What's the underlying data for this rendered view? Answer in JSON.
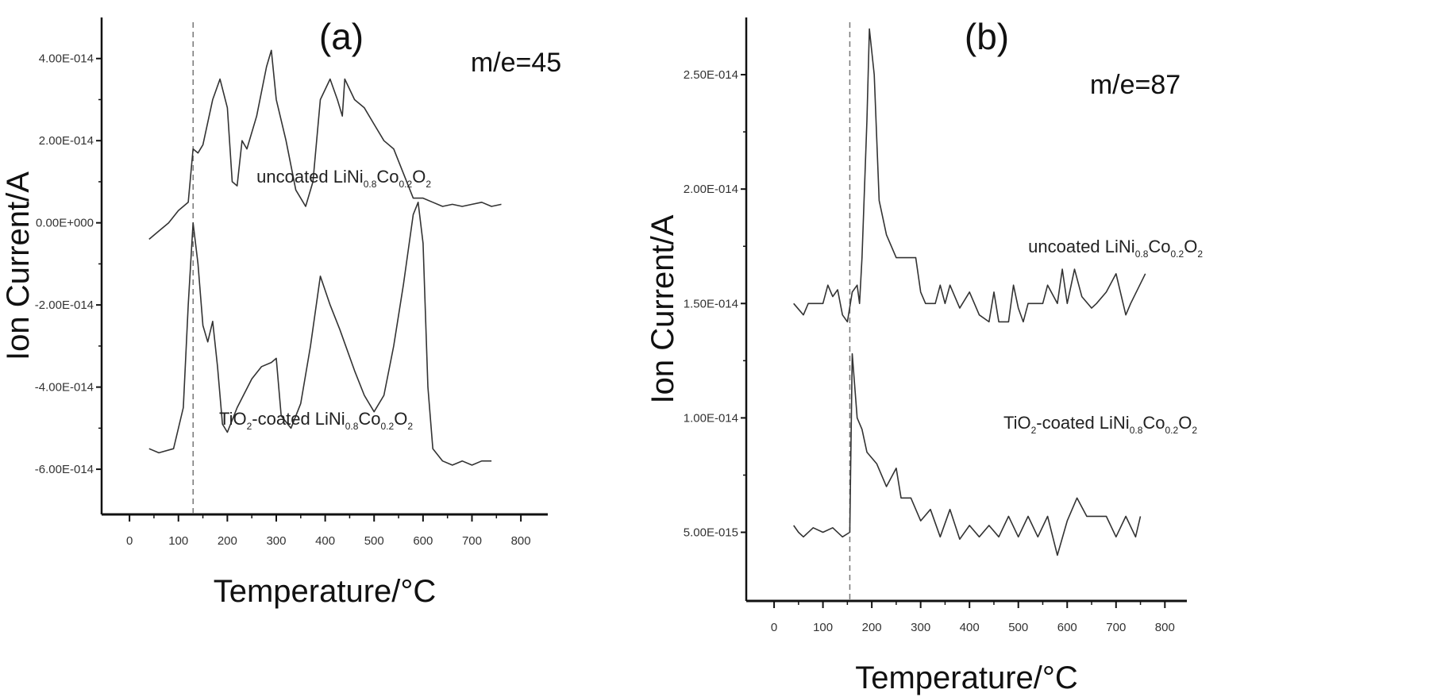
{
  "chart_data": [
    {
      "type": "line",
      "panel_label": "(a)",
      "annotation": "m/e=45",
      "xlabel": "Temperature/°C",
      "ylabel": "Ion Current/A",
      "xlim": [
        -57,
        855
      ],
      "ylim": [
        -7.1e-14,
        5e-14
      ],
      "xticks": [
        0,
        100,
        200,
        300,
        400,
        500,
        600,
        700,
        800
      ],
      "xtick_labels": [
        "0",
        "100",
        "200",
        "300",
        "400",
        "500",
        "600",
        "700",
        "800"
      ],
      "yticks": [
        4e-14,
        2e-14,
        0,
        -2e-14,
        -4e-14,
        -6e-14
      ],
      "ytick_labels": [
        "4.00E-014",
        "2.00E-014",
        "0.00E+000",
        "-2.00E-014",
        "-4.00E-014",
        "-6.00E-014"
      ],
      "reference_line_x": 130,
      "grid": false,
      "series": [
        {
          "name": "uncoated LiNi0.8Co0.2O2",
          "label_parts": [
            [
              "uncoated LiNi",
              ""
            ],
            [
              "0.8",
              "sub"
            ],
            [
              "Co",
              ""
            ],
            [
              "0.2",
              "sub"
            ],
            [
              "O",
              ""
            ],
            [
              "2",
              "sub"
            ]
          ],
          "x": [
            40,
            60,
            80,
            100,
            120,
            130,
            140,
            150,
            170,
            185,
            200,
            210,
            220,
            230,
            240,
            260,
            280,
            290,
            300,
            320,
            340,
            360,
            375,
            390,
            410,
            425,
            435,
            440,
            460,
            480,
            500,
            520,
            540,
            560,
            580,
            600,
            620,
            640,
            660,
            680,
            700,
            720,
            740,
            760
          ],
          "y": [
            -4e-15,
            -2e-15,
            0,
            3e-15,
            5e-15,
            1.8e-14,
            1.7e-14,
            1.9e-14,
            3e-14,
            3.5e-14,
            2.8e-14,
            1e-14,
            9e-15,
            2e-14,
            1.8e-14,
            2.6e-14,
            3.8e-14,
            4.2e-14,
            3e-14,
            2e-14,
            8e-15,
            4e-15,
            1e-14,
            3e-14,
            3.5e-14,
            3e-14,
            2.6e-14,
            3.5e-14,
            3e-14,
            2.8e-14,
            2.4e-14,
            2e-14,
            1.8e-14,
            1.2e-14,
            6e-15,
            6e-15,
            5e-15,
            4e-15,
            4.5e-15,
            4e-15,
            4.5e-15,
            5e-15,
            4e-15,
            4.5e-15
          ]
        },
        {
          "name": "TiO2-coated LiNi0.8Co0.2O2",
          "label_parts": [
            [
              "TiO",
              ""
            ],
            [
              "2",
              "sub"
            ],
            [
              "-coated LiNi",
              ""
            ],
            [
              "0.8",
              "sub"
            ],
            [
              "Co",
              ""
            ],
            [
              "0.2",
              "sub"
            ],
            [
              "O",
              ""
            ],
            [
              "2",
              "sub"
            ]
          ],
          "x": [
            40,
            60,
            90,
            110,
            120,
            130,
            140,
            150,
            160,
            170,
            180,
            190,
            200,
            220,
            250,
            270,
            290,
            300,
            310,
            330,
            350,
            370,
            390,
            410,
            430,
            460,
            480,
            500,
            520,
            540,
            560,
            580,
            590,
            600,
            610,
            620,
            640,
            660,
            680,
            700,
            720,
            740
          ],
          "y": [
            -5.5e-14,
            -5.6e-14,
            -5.5e-14,
            -4.5e-14,
            -2e-14,
            0,
            -1e-14,
            -2.5e-14,
            -2.9e-14,
            -2.4e-14,
            -3.5e-14,
            -4.9e-14,
            -5.1e-14,
            -4.5e-14,
            -3.8e-14,
            -3.5e-14,
            -3.4e-14,
            -3.3e-14,
            -4.7e-14,
            -5e-14,
            -4.4e-14,
            -3e-14,
            -1.3e-14,
            -2e-14,
            -2.6e-14,
            -3.6e-14,
            -4.2e-14,
            -4.6e-14,
            -4.2e-14,
            -3e-14,
            -1.5e-14,
            2e-15,
            5e-15,
            -5e-15,
            -4e-14,
            -5.5e-14,
            -5.8e-14,
            -5.9e-14,
            -5.8e-14,
            -5.9e-14,
            -5.8e-14,
            -5.8e-14
          ]
        }
      ]
    },
    {
      "type": "line",
      "panel_label": "(b)",
      "annotation": "m/e=87",
      "xlabel": "Temperature/°C",
      "ylabel": "Ion Current/A",
      "xlim": [
        -57,
        845
      ],
      "ylim": [
        2e-15,
        2.75e-14
      ],
      "xticks": [
        0,
        100,
        200,
        300,
        400,
        500,
        600,
        700,
        800
      ],
      "xtick_labels": [
        "0",
        "100",
        "200",
        "300",
        "400",
        "500",
        "600",
        "700",
        "800"
      ],
      "yticks": [
        2.5e-14,
        2e-14,
        1.5e-14,
        1e-14,
        5e-15
      ],
      "ytick_labels": [
        "2.50E-014",
        "2.00E-014",
        "1.50E-014",
        "1.00E-014",
        "5.00E-015"
      ],
      "reference_line_x": 155,
      "grid": false,
      "series": [
        {
          "name": "uncoated LiNi0.8Co0.2O2",
          "label_parts": [
            [
              "uncoated LiNi",
              ""
            ],
            [
              "0.8",
              "sub"
            ],
            [
              "Co",
              ""
            ],
            [
              "0.2",
              "sub"
            ],
            [
              "O",
              ""
            ],
            [
              "2",
              "sub"
            ]
          ],
          "x": [
            40,
            60,
            70,
            100,
            110,
            120,
            130,
            140,
            150,
            160,
            170,
            175,
            180,
            190,
            195,
            205,
            215,
            230,
            250,
            290,
            300,
            310,
            330,
            340,
            350,
            360,
            380,
            400,
            420,
            440,
            450,
            460,
            480,
            490,
            500,
            510,
            520,
            550,
            560,
            580,
            590,
            600,
            615,
            630,
            650,
            660,
            680,
            700,
            720,
            730,
            760
          ],
          "y": [
            1.5e-14,
            1.45e-14,
            1.5e-14,
            1.5e-14,
            1.58e-14,
            1.53e-14,
            1.56e-14,
            1.45e-14,
            1.42e-14,
            1.55e-14,
            1.58e-14,
            1.5e-14,
            1.7e-14,
            2.3e-14,
            2.7e-14,
            2.5e-14,
            1.95e-14,
            1.8e-14,
            1.7e-14,
            1.7e-14,
            1.55e-14,
            1.5e-14,
            1.5e-14,
            1.58e-14,
            1.5e-14,
            1.58e-14,
            1.48e-14,
            1.55e-14,
            1.45e-14,
            1.42e-14,
            1.55e-14,
            1.42e-14,
            1.42e-14,
            1.58e-14,
            1.48e-14,
            1.42e-14,
            1.5e-14,
            1.5e-14,
            1.58e-14,
            1.5e-14,
            1.65e-14,
            1.5e-14,
            1.65e-14,
            1.53e-14,
            1.48e-14,
            1.5e-14,
            1.55e-14,
            1.63e-14,
            1.45e-14,
            1.5e-14,
            1.63e-14
          ]
        },
        {
          "name": "TiO2-coated LiNi0.8Co0.2O2",
          "label_parts": [
            [
              "TiO",
              ""
            ],
            [
              "2",
              "sub"
            ],
            [
              "-coated LiNi",
              ""
            ],
            [
              "0.8",
              "sub"
            ],
            [
              "Co",
              ""
            ],
            [
              "0.2",
              "sub"
            ],
            [
              "O",
              ""
            ],
            [
              "2",
              "sub"
            ]
          ],
          "x": [
            40,
            50,
            60,
            80,
            100,
            120,
            140,
            155,
            160,
            170,
            180,
            190,
            210,
            230,
            250,
            260,
            280,
            300,
            320,
            340,
            360,
            380,
            400,
            420,
            440,
            460,
            480,
            500,
            520,
            540,
            560,
            580,
            600,
            620,
            640,
            680,
            700,
            720,
            740,
            750
          ],
          "y": [
            5.3e-15,
            5e-15,
            4.8e-15,
            5.2e-15,
            5e-15,
            5.2e-15,
            4.8e-15,
            5e-15,
            1.28e-14,
            1e-14,
            9.5e-15,
            8.5e-15,
            8e-15,
            7e-15,
            7.8e-15,
            6.5e-15,
            6.5e-15,
            5.5e-15,
            6e-15,
            4.8e-15,
            6e-15,
            4.7e-15,
            5.3e-15,
            4.8e-15,
            5.3e-15,
            4.8e-15,
            5.7e-15,
            4.8e-15,
            5.7e-15,
            4.8e-15,
            5.7e-15,
            4e-15,
            5.5e-15,
            6.5e-15,
            5.7e-15,
            5.7e-15,
            4.8e-15,
            5.7e-15,
            4.8e-15,
            5.7e-15
          ]
        }
      ]
    }
  ]
}
